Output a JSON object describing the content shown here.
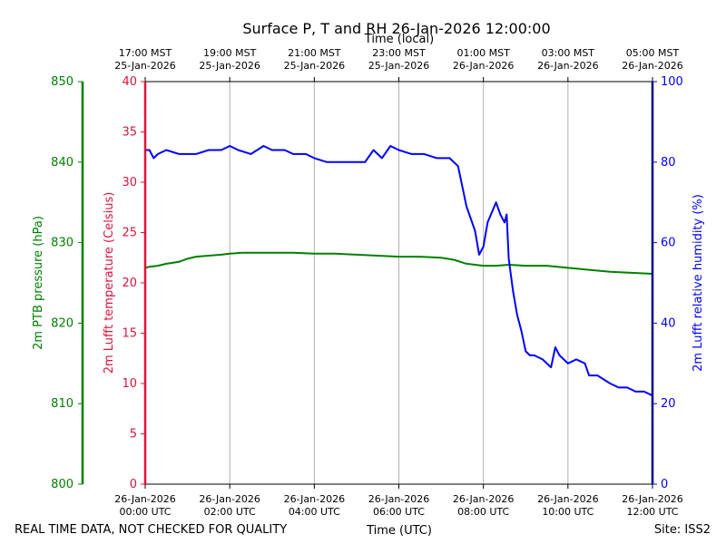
{
  "chart_data": {
    "type": "line",
    "title": "Surface P, T and RH 26-Jan-2026 12:00:00",
    "top_xlabel": "Time (local)",
    "bottom_xlabel": "Time (UTC)",
    "footer_left": "REAL TIME DATA, NOT CHECKED FOR QUALITY",
    "footer_right": "Site: ISS2",
    "colors": {
      "pressure": "#008000",
      "temperature": "#dc143c",
      "humidity": "#0000ff",
      "grid": "#b0b0b0",
      "axis": "#000000"
    },
    "x_range_hours_utc": [
      0,
      12
    ],
    "bottom_ticks": [
      {
        "h": 0,
        "date": "26-Jan-2026",
        "time": "00:00 UTC"
      },
      {
        "h": 2,
        "date": "26-Jan-2026",
        "time": "02:00 UTC"
      },
      {
        "h": 4,
        "date": "26-Jan-2026",
        "time": "04:00 UTC"
      },
      {
        "h": 6,
        "date": "26-Jan-2026",
        "time": "06:00 UTC"
      },
      {
        "h": 8,
        "date": "26-Jan-2026",
        "time": "08:00 UTC"
      },
      {
        "h": 10,
        "date": "26-Jan-2026",
        "time": "10:00 UTC"
      },
      {
        "h": 12,
        "date": "26-Jan-2026",
        "time": "12:00 UTC"
      }
    ],
    "top_ticks": [
      {
        "h": 0,
        "time": "17:00 MST",
        "date": "25-Jan-2026"
      },
      {
        "h": 2,
        "time": "19:00 MST",
        "date": "25-Jan-2026"
      },
      {
        "h": 4,
        "time": "21:00 MST",
        "date": "25-Jan-2026"
      },
      {
        "h": 6,
        "time": "23:00 MST",
        "date": "25-Jan-2026"
      },
      {
        "h": 8,
        "time": "01:00 MST",
        "date": "26-Jan-2026"
      },
      {
        "h": 10,
        "time": "03:00 MST",
        "date": "26-Jan-2026"
      },
      {
        "h": 12,
        "time": "05:00 MST",
        "date": "26-Jan-2026"
      }
    ],
    "axes": {
      "pressure": {
        "label": "2m PTB pressure (hPa)",
        "ylim": [
          800,
          850
        ],
        "ticks": [
          800,
          810,
          820,
          830,
          840,
          850
        ]
      },
      "temperature": {
        "label": "2m Lufft temperature (Celsius)",
        "ylim": [
          0,
          40
        ],
        "ticks": [
          0,
          5,
          10,
          15,
          20,
          25,
          30,
          35,
          40
        ]
      },
      "humidity": {
        "label": "2m Lufft relative humidity (%)",
        "ylim": [
          0,
          100
        ],
        "ticks": [
          0,
          20,
          40,
          60,
          80,
          100
        ]
      }
    },
    "series": [
      {
        "name": "2m Lufft temperature",
        "axis": "temperature",
        "x": [
          0,
          0.1,
          0.3,
          0.5,
          0.8,
          1.0,
          1.2,
          1.5,
          1.8,
          2.0,
          2.3,
          2.6,
          3.0,
          3.5,
          4.0,
          4.5,
          5.0,
          5.5,
          6.0,
          6.5,
          7.0,
          7.3,
          7.6,
          8.0,
          8.3,
          8.6,
          9.0,
          9.5,
          10.0,
          10.5,
          11.0,
          11.5,
          12.0
        ],
        "values": [
          21.5,
          21.6,
          21.7,
          21.9,
          22.1,
          22.4,
          22.6,
          22.7,
          22.8,
          22.9,
          23.0,
          23.0,
          23.0,
          23.0,
          22.9,
          22.9,
          22.8,
          22.7,
          22.6,
          22.6,
          22.5,
          22.3,
          21.9,
          21.7,
          21.7,
          21.8,
          21.7,
          21.7,
          21.5,
          21.3,
          21.1,
          21.0,
          20.9
        ]
      },
      {
        "name": "2m Lufft relative humidity",
        "axis": "humidity",
        "x": [
          0,
          0.1,
          0.2,
          0.3,
          0.5,
          0.8,
          1.0,
          1.2,
          1.5,
          1.8,
          2.0,
          2.2,
          2.5,
          2.8,
          3.0,
          3.3,
          3.5,
          3.8,
          4.0,
          4.3,
          4.6,
          4.9,
          5.2,
          5.4,
          5.6,
          5.8,
          6.0,
          6.3,
          6.6,
          6.9,
          7.2,
          7.4,
          7.5,
          7.6,
          7.7,
          7.8,
          7.9,
          8.0,
          8.1,
          8.3,
          8.4,
          8.5,
          8.55,
          8.6,
          8.7,
          8.8,
          8.9,
          9.0,
          9.1,
          9.2,
          9.4,
          9.6,
          9.7,
          9.8,
          10.0,
          10.2,
          10.4,
          10.5,
          10.7,
          11.0,
          11.2,
          11.4,
          11.6,
          11.8,
          12.0
        ],
        "values": [
          83,
          83,
          81,
          82,
          83,
          82,
          82,
          82,
          83,
          83,
          84,
          83,
          82,
          84,
          83,
          83,
          82,
          82,
          81,
          80,
          80,
          80,
          80,
          83,
          81,
          84,
          83,
          82,
          82,
          81,
          81,
          79,
          74,
          69,
          66,
          63,
          57,
          59,
          65,
          70,
          67,
          65,
          67,
          56,
          48,
          42,
          38,
          33,
          32,
          32,
          31,
          29,
          34,
          32,
          30,
          31,
          30,
          27,
          27,
          25,
          24,
          24,
          23,
          23,
          22
        ]
      },
      {
        "name": "2m PTB pressure",
        "axis": "pressure",
        "x": [],
        "values": []
      }
    ]
  }
}
